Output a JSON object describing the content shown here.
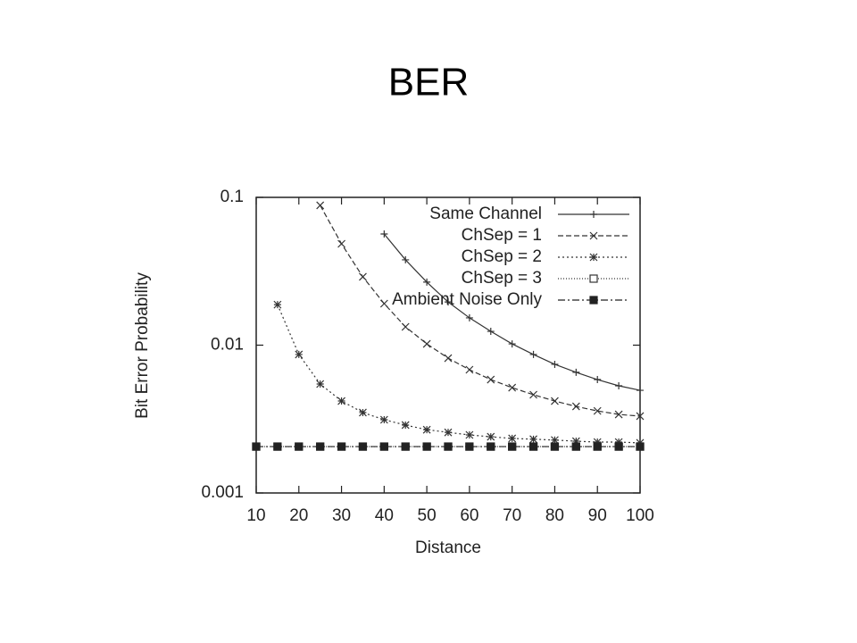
{
  "chart_data": {
    "type": "line",
    "title": "BER",
    "x_label": "Distance",
    "y_label": "Bit Error Probability",
    "log_y": true,
    "legend": "upper right",
    "xlim": [
      10,
      100
    ],
    "ylim": [
      0.001,
      0.1
    ],
    "xticks": [
      10,
      20,
      30,
      40,
      50,
      60,
      70,
      80,
      90,
      100
    ],
    "yticks": [
      0.001,
      0.01,
      0.1
    ],
    "x": [
      10,
      15,
      20,
      25,
      30,
      35,
      40,
      45,
      50,
      55,
      60,
      65,
      70,
      75,
      80,
      85,
      90,
      95,
      100
    ],
    "series": [
      {
        "name": "Same Channel",
        "color": "#333333",
        "marker": "plus",
        "dash": "solid",
        "values": [
          null,
          null,
          null,
          null,
          null,
          null,
          0.0565,
          0.0378,
          0.0267,
          0.0196,
          0.0153,
          0.0124,
          0.0102,
          0.00865,
          0.00742,
          0.00655,
          0.00585,
          0.00531,
          0.00495
        ]
      },
      {
        "name": "ChSep = 1",
        "color": "#333333",
        "marker": "cross",
        "dash": "dashed",
        "values": [
          null,
          null,
          null,
          0.0883,
          0.0485,
          0.029,
          0.0191,
          0.0133,
          0.0102,
          0.00817,
          0.00682,
          0.00585,
          0.00516,
          0.00462,
          0.00419,
          0.00385,
          0.00359,
          0.0034,
          0.00331
        ]
      },
      {
        "name": "ChSep = 2",
        "color": "#333333",
        "marker": "star",
        "dash": "dotted",
        "values": [
          null,
          0.0188,
          0.00865,
          0.00546,
          0.00419,
          0.0035,
          0.00313,
          0.00288,
          0.00268,
          0.00257,
          0.00247,
          0.0024,
          0.00234,
          0.00231,
          0.00228,
          0.00224,
          0.00221,
          0.00221,
          0.00218
        ]
      },
      {
        "name": "ChSep = 3",
        "color": "#333333",
        "marker": "open-square",
        "dash": "fine-dotted",
        "values": [
          0.00206,
          0.00206,
          0.00206,
          0.00206,
          0.00206,
          0.00206,
          0.00206,
          0.00206,
          0.00206,
          0.00206,
          0.00206,
          0.00206,
          0.00206,
          0.00206,
          0.00206,
          0.00206,
          0.00206,
          0.00206,
          0.00206
        ]
      },
      {
        "name": "Ambient Noise Only",
        "color": "#222222",
        "marker": "filled-square",
        "dash": "dash-dot",
        "values": [
          0.00206,
          0.00206,
          0.00206,
          0.00206,
          0.00206,
          0.00206,
          0.00206,
          0.00206,
          0.00206,
          0.00206,
          0.00206,
          0.00206,
          0.00206,
          0.00206,
          0.00206,
          0.00206,
          0.00206,
          0.00206,
          0.00206
        ]
      }
    ]
  }
}
